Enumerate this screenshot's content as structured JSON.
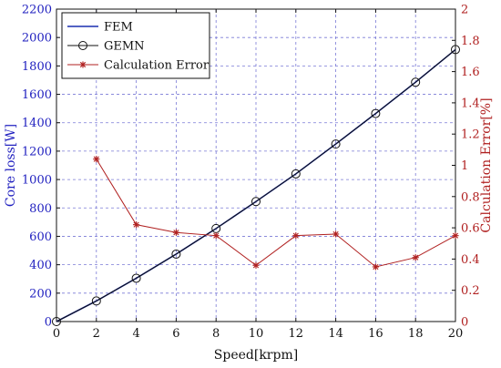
{
  "chart_data": {
    "type": "line",
    "xlabel": "Speed[krpm]",
    "ylabel_left": "Core loss[W]",
    "ylabel_right": "Calculation Error[%]",
    "xlim": [
      0,
      20
    ],
    "ylim_left": [
      0,
      2200
    ],
    "ylim_right": [
      0,
      2
    ],
    "x_ticks": [
      "0",
      "2",
      "4",
      "6",
      "8",
      "10",
      "12",
      "14",
      "16",
      "18",
      "20"
    ],
    "y_left_ticks": [
      "0",
      "200",
      "400",
      "600",
      "800",
      "1000",
      "1200",
      "1400",
      "1600",
      "1800",
      "2000",
      "2200"
    ],
    "y_right_ticks": [
      "0",
      "0.2",
      "0.4",
      "0.6",
      "0.8",
      "1",
      "1.2",
      "1.4",
      "1.6",
      "1.8",
      "2"
    ],
    "grid": true,
    "legend_position": "top-left",
    "series": [
      {
        "name": "FEM",
        "axis": "left",
        "color": "#1a2fb0",
        "marker": "none",
        "x": [
          0,
          2,
          4,
          6,
          8,
          10,
          12,
          14,
          16,
          18,
          20
        ],
        "values": [
          0,
          145,
          305,
          475,
          655,
          845,
          1040,
          1250,
          1465,
          1685,
          1915
        ]
      },
      {
        "name": "GEMN",
        "axis": "left",
        "color": "#111111",
        "marker": "circle",
        "x": [
          0,
          2,
          4,
          6,
          8,
          10,
          12,
          14,
          16,
          18,
          20
        ],
        "values": [
          0,
          145,
          305,
          475,
          655,
          845,
          1040,
          1250,
          1465,
          1685,
          1915
        ]
      },
      {
        "name": "Calculation Error",
        "axis": "right",
        "color": "#b02020",
        "marker": "asterisk",
        "x": [
          2,
          4,
          6,
          8,
          10,
          12,
          14,
          16,
          18,
          20
        ],
        "values": [
          1.04,
          0.62,
          0.57,
          0.55,
          0.36,
          0.55,
          0.56,
          0.35,
          0.41,
          0.55
        ]
      }
    ]
  }
}
